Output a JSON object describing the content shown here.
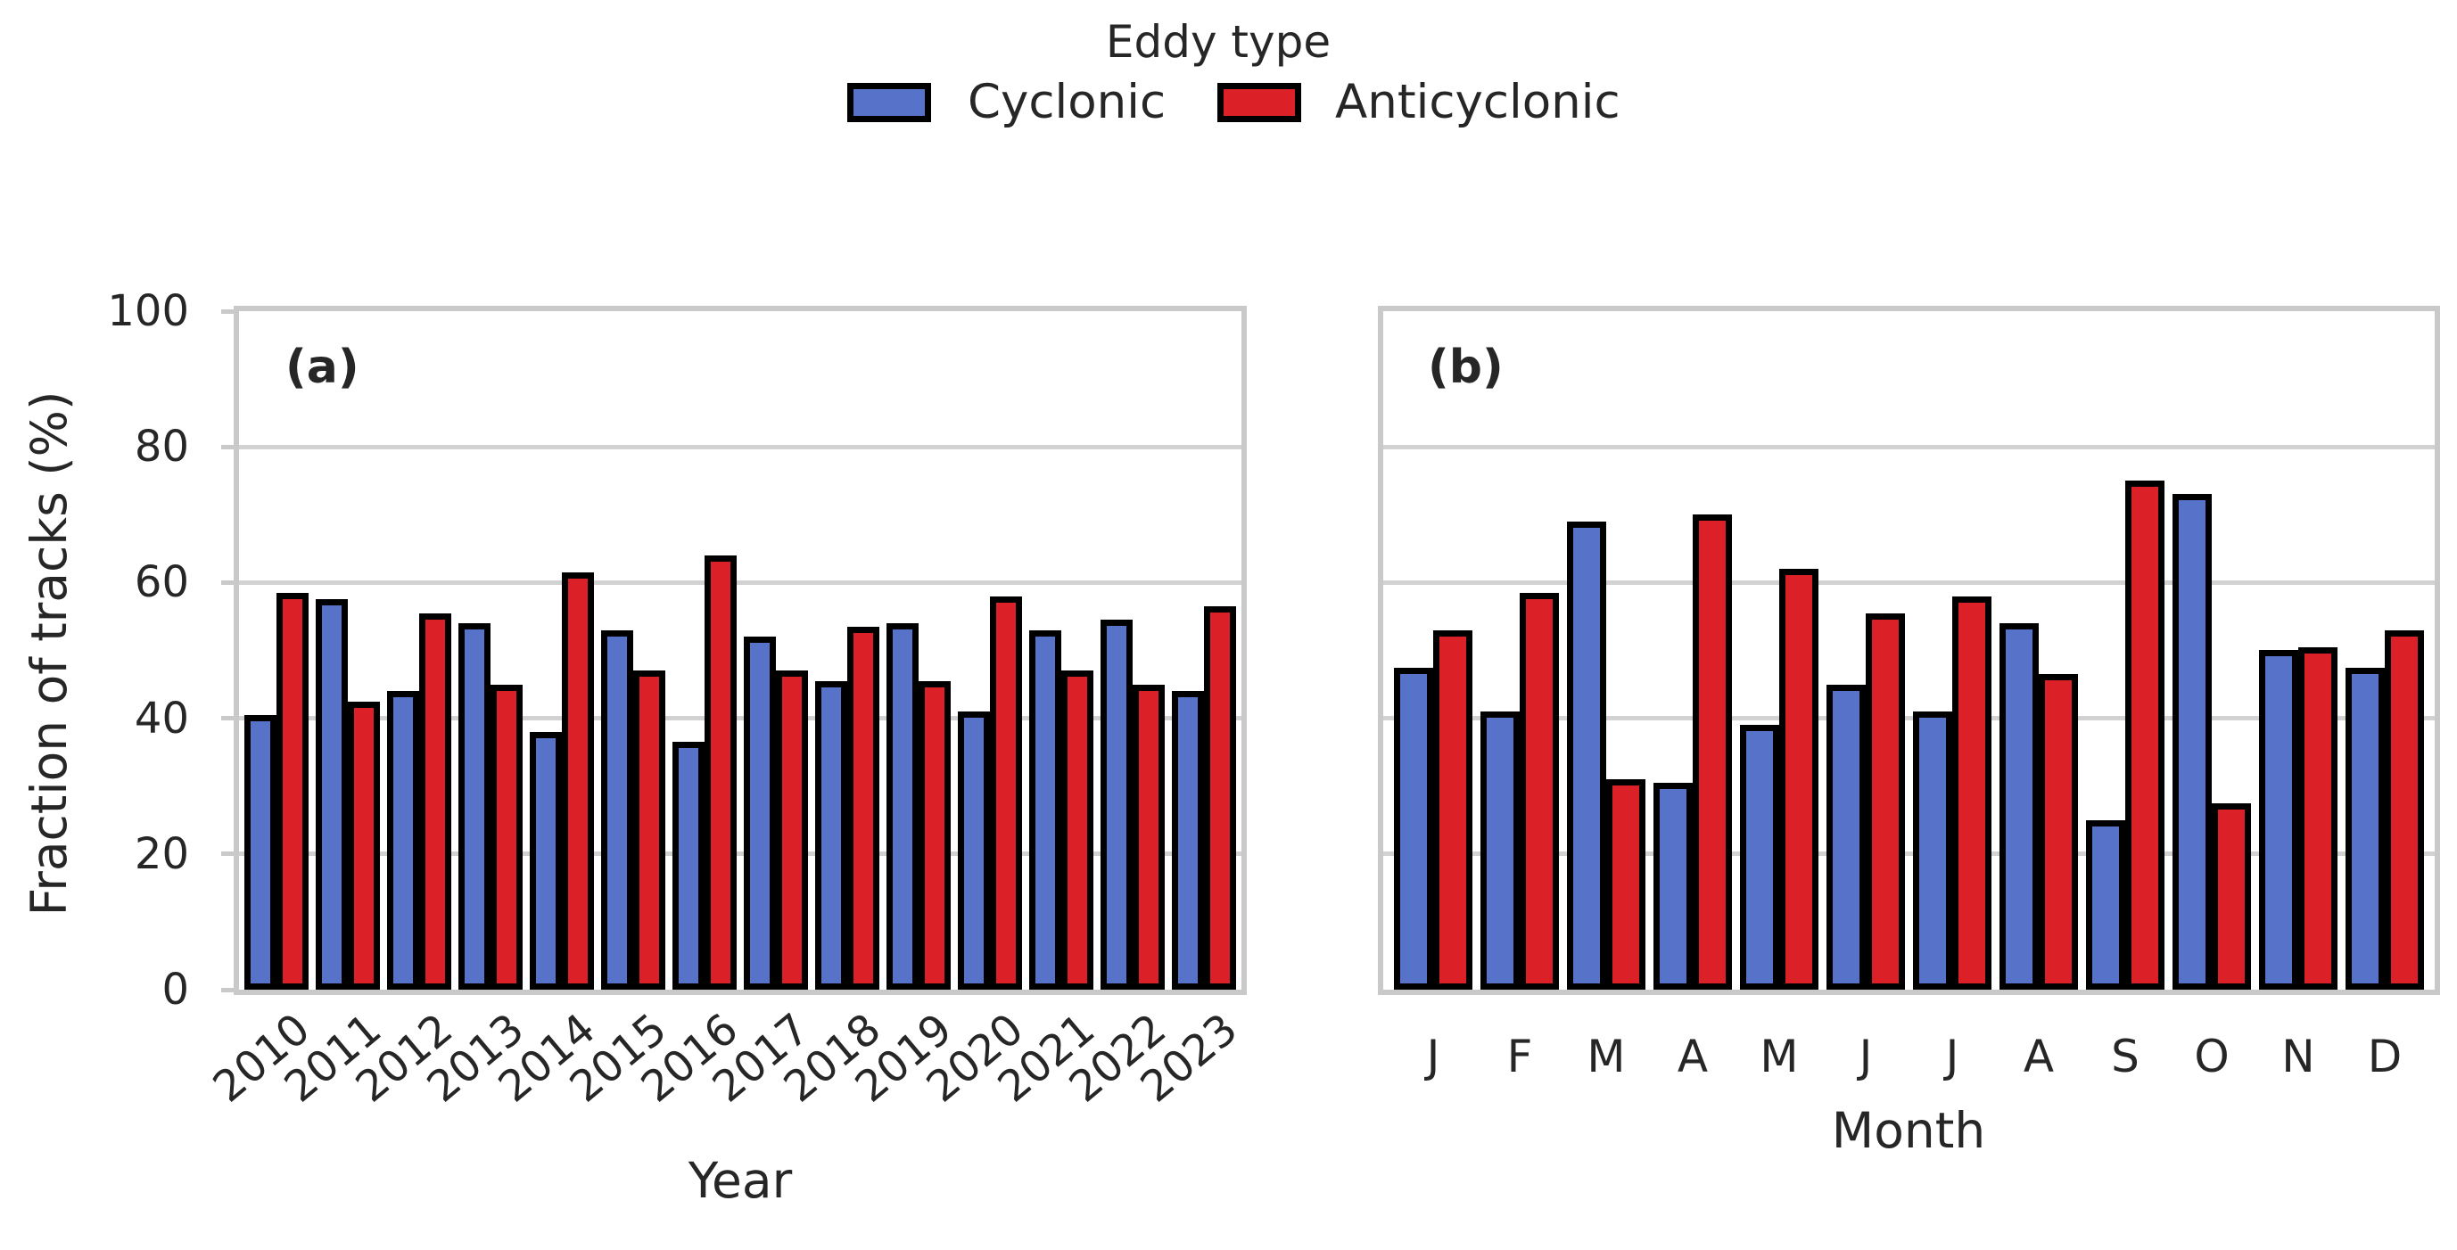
{
  "figure": {
    "ylabel": "Fraction of tracks (%)",
    "legend": {
      "title": "Eddy type",
      "items": [
        {
          "label": "Cyclonic",
          "color": "#5673C9"
        },
        {
          "label": "Anticyclonic",
          "color": "#DC2028"
        }
      ]
    }
  },
  "colors": {
    "cyclonic": "#5673C9",
    "anticyclonic": "#DC2028",
    "bar_edge": "#000000",
    "grid": "#D2D2D2",
    "spine": "#C9C9C9",
    "text": "#262626"
  },
  "chart_data": [
    {
      "type": "bar",
      "panel_label": "(a)",
      "title": "",
      "xlabel": "Year",
      "ylabel": "Fraction of tracks (%)",
      "ylim": [
        0,
        100
      ],
      "yticks": [
        0,
        20,
        40,
        60,
        80,
        100
      ],
      "grid": true,
      "legend_position": "top-center-of-figure",
      "categories": [
        "2010",
        "2011",
        "2012",
        "2013",
        "2014",
        "2015",
        "2016",
        "2017",
        "2018",
        "2019",
        "2020",
        "2021",
        "2022",
        "2023"
      ],
      "series": [
        {
          "name": "Cyclonic",
          "color": "#5673C9",
          "values": [
            40.5,
            57.5,
            44,
            54,
            38,
            53,
            36.5,
            52,
            45.5,
            54,
            41,
            53,
            54.5,
            44
          ]
        },
        {
          "name": "Anticyclonic",
          "color": "#DC2028",
          "values": [
            58.5,
            42.5,
            55.5,
            45,
            61.5,
            47,
            64,
            47,
            53.5,
            45.5,
            58,
            47,
            45,
            56.5
          ]
        }
      ]
    },
    {
      "type": "bar",
      "panel_label": "(b)",
      "title": "",
      "xlabel": "Month",
      "ylabel": "Fraction of tracks (%)",
      "ylim": [
        0,
        100
      ],
      "yticks": [
        0,
        20,
        40,
        60,
        80,
        100
      ],
      "grid": true,
      "categories": [
        "J",
        "F",
        "M",
        "A",
        "M",
        "J",
        "J",
        "A",
        "S",
        "O",
        "N",
        "D"
      ],
      "series": [
        {
          "name": "Cyclonic",
          "color": "#5673C9",
          "values": [
            47.5,
            41,
            69,
            30.5,
            39,
            45,
            41,
            54,
            25,
            73,
            50,
            47.5
          ]
        },
        {
          "name": "Anticyclonic",
          "color": "#DC2028",
          "values": [
            53,
            58.5,
            31,
            70,
            62,
            55.5,
            58,
            46.5,
            75,
            27.5,
            50.5,
            53
          ]
        }
      ]
    }
  ]
}
